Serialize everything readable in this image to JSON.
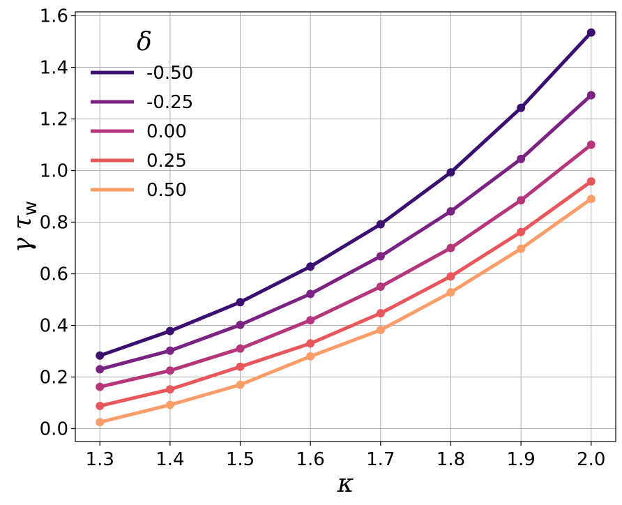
{
  "chart_data": {
    "type": "line",
    "xlabel": "κ",
    "ylabel": "γ τ",
    "ylabel_sub": "w",
    "x": [
      1.3,
      1.4,
      1.5,
      1.6,
      1.7,
      1.8,
      1.9,
      2.0
    ],
    "xlim": [
      1.265,
      2.035
    ],
    "ylim": [
      -0.05,
      1.615
    ],
    "xticks": [
      "1.3",
      "1.4",
      "1.5",
      "1.6",
      "1.7",
      "1.8",
      "1.9",
      "2.0"
    ],
    "yticks": [
      "0.0",
      "0.2",
      "0.4",
      "0.6",
      "0.8",
      "1.0",
      "1.2",
      "1.4",
      "1.6"
    ],
    "grid": true,
    "legend": {
      "title": "δ",
      "placement": "upper-left"
    },
    "series": [
      {
        "name": "-0.50",
        "color": "#3b0f70",
        "values": [
          0.283,
          0.378,
          0.49,
          0.628,
          0.792,
          0.993,
          1.243,
          1.535
        ]
      },
      {
        "name": "-0.25",
        "color": "#7a2382",
        "values": [
          0.23,
          0.302,
          0.402,
          0.522,
          0.668,
          0.842,
          1.045,
          1.292
        ]
      },
      {
        "name": "0.00",
        "color": "#b5367a",
        "values": [
          0.162,
          0.225,
          0.31,
          0.42,
          0.55,
          0.7,
          0.885,
          1.1
        ]
      },
      {
        "name": "0.25",
        "color": "#e8575c",
        "values": [
          0.088,
          0.152,
          0.24,
          0.33,
          0.447,
          0.59,
          0.762,
          0.958
        ]
      },
      {
        "name": "0.50",
        "color": "#fd9e6a",
        "values": [
          0.025,
          0.092,
          0.17,
          0.28,
          0.382,
          0.528,
          0.697,
          0.89
        ]
      }
    ]
  }
}
